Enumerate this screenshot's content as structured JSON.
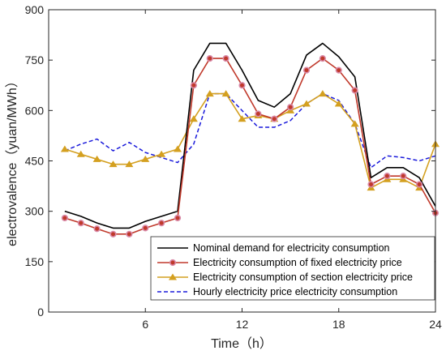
{
  "chart_data": {
    "type": "line",
    "xlabel": "Time（h）",
    "ylabel": "electrovalence（yuan/MWh）",
    "xlim": [
      0,
      24
    ],
    "ylim": [
      0,
      900
    ],
    "xticks": [
      "6",
      "12",
      "18",
      "24"
    ],
    "yticks": [
      "0",
      "150",
      "300",
      "450",
      "600",
      "750",
      "900"
    ],
    "xtick_values": [
      6,
      12,
      18,
      24
    ],
    "ytick_values": [
      0,
      150,
      300,
      450,
      600,
      750,
      900
    ],
    "grid": false,
    "legend_position": "bottom-right",
    "x": [
      1,
      2,
      3,
      4,
      5,
      6,
      7,
      8,
      9,
      10,
      11,
      12,
      13,
      14,
      15,
      16,
      17,
      18,
      19,
      20,
      21,
      22,
      23,
      24
    ],
    "series": [
      {
        "name": "Nominal demand for electricity consumption",
        "color": "#000000",
        "style": "solid",
        "marker": "none",
        "values": [
          300,
          285,
          265,
          250,
          250,
          270,
          285,
          300,
          720,
          800,
          800,
          720,
          630,
          610,
          650,
          765,
          800,
          760,
          700,
          400,
          430,
          430,
          400,
          315
        ]
      },
      {
        "name": "Electricity consumption of fixed electricity price",
        "color": "#c0392b",
        "style": "solid",
        "marker": "circle",
        "values": [
          280,
          265,
          248,
          232,
          232,
          250,
          265,
          280,
          675,
          755,
          755,
          675,
          590,
          575,
          610,
          720,
          755,
          720,
          660,
          380,
          405,
          405,
          380,
          295
        ]
      },
      {
        "name": "Electricity consumption of section electricity price",
        "color": "#d4a020",
        "style": "solid",
        "marker": "triangle",
        "values": [
          485,
          470,
          455,
          440,
          440,
          455,
          470,
          485,
          575,
          650,
          650,
          575,
          585,
          575,
          600,
          620,
          650,
          620,
          560,
          370,
          395,
          395,
          370,
          500
        ]
      },
      {
        "name": "Hourly electricity price electricity consumption",
        "color": "#1a1adb",
        "style": "dashed",
        "marker": "none",
        "values": [
          480,
          500,
          515,
          480,
          505,
          475,
          460,
          445,
          500,
          650,
          650,
          600,
          550,
          550,
          570,
          620,
          650,
          630,
          560,
          430,
          465,
          460,
          450,
          465
        ]
      }
    ]
  }
}
